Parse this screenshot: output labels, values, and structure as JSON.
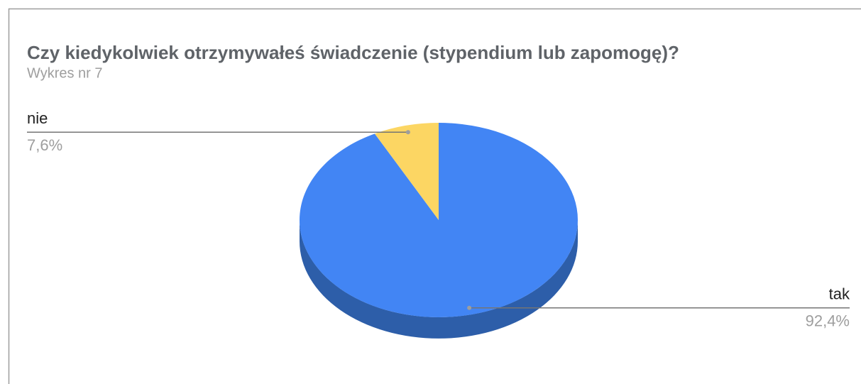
{
  "chart_data": {
    "type": "pie",
    "title": "Czy kiedykolwiek otrzymywałeś świadczenie (stypendium lub zapomogę)?",
    "subtitle": "Wykres nr 7",
    "categories": [
      "tak",
      "nie"
    ],
    "values": [
      92.4,
      7.6
    ],
    "value_labels": [
      "92,4%",
      "7,6%"
    ],
    "colors": [
      "#4285f4",
      "#fcd663"
    ],
    "side_colors": [
      "#2d5ea9",
      "#c9a43f"
    ],
    "three_d": true
  }
}
